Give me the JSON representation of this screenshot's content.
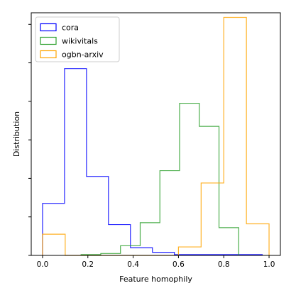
{
  "chart_data": {
    "type": "histogram",
    "xlabel": "Feature homophily",
    "ylabel": "Distribution",
    "xlim": [
      -0.05,
      1.05
    ],
    "ylim": [
      0,
      6.3
    ],
    "xticks": [
      0.0,
      0.2,
      0.4,
      0.6,
      0.8,
      1.0
    ],
    "xtick_labels": [
      "0.0",
      "0.2",
      "0.4",
      "0.6",
      "0.8",
      "1.0"
    ],
    "yticks": [
      0,
      1,
      2,
      3,
      4,
      5,
      6
    ],
    "ytick_labels_visible": false,
    "grid": false,
    "legend_position": "upper left",
    "series": [
      {
        "name": "cora",
        "color": "#0000ff",
        "bin_edges": [
          0.0,
          0.097,
          0.194,
          0.291,
          0.388,
          0.485,
          0.582,
          0.679,
          0.776,
          0.873,
          0.97
        ],
        "heights": [
          1.35,
          4.85,
          2.05,
          0.8,
          0.2,
          0.08,
          0.02,
          0.02,
          0.02,
          0.02
        ]
      },
      {
        "name": "wikivitals",
        "color": "#2ca02c",
        "bin_edges": [
          0.17,
          0.257,
          0.344,
          0.431,
          0.518,
          0.605,
          0.692,
          0.779,
          0.866
        ],
        "heights": [
          0.02,
          0.05,
          0.25,
          0.85,
          2.2,
          3.95,
          3.35,
          0.72
        ]
      },
      {
        "name": "ogbn-arxiv",
        "color": "#ffa500",
        "bin_edges": [
          0.0,
          0.1,
          0.2,
          0.3,
          0.4,
          0.5,
          0.6,
          0.7,
          0.8,
          0.9,
          1.0
        ],
        "heights": [
          0.55,
          0.0,
          0.0,
          0.0,
          0.0,
          0.0,
          0.22,
          1.88,
          6.18,
          0.82
        ]
      }
    ]
  }
}
